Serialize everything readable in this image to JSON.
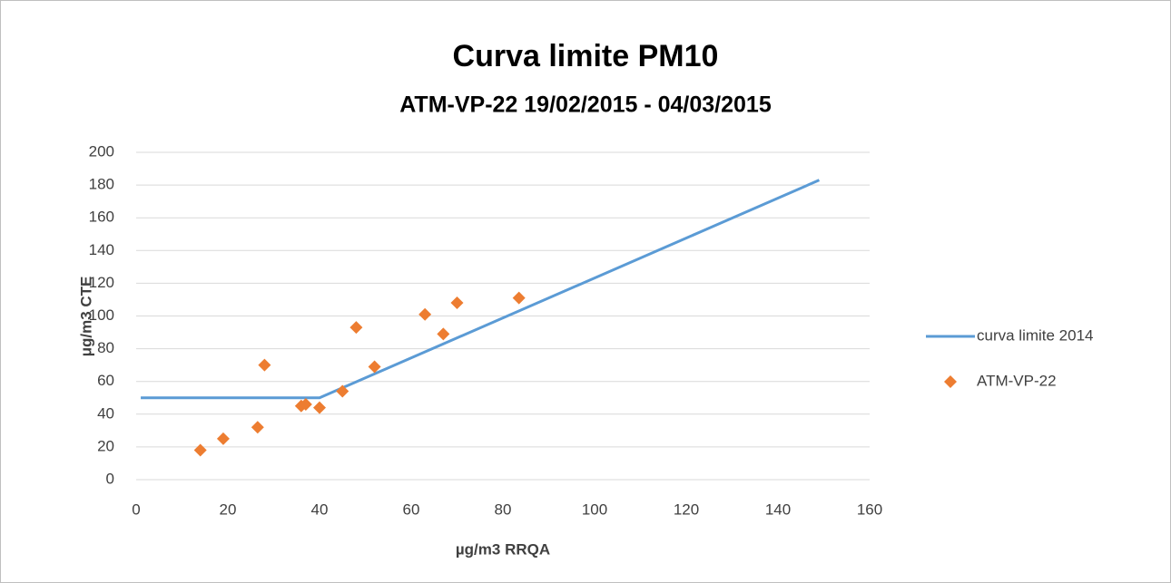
{
  "chart_data": {
    "type": "scatter",
    "title": "Curva limite PM10",
    "subtitle": "ATM-VP-22  19/02/2015 - 04/03/2015",
    "x_label": "µg/m3 RRQA",
    "y_label": "μg/m3 CTE",
    "xlim": [
      0,
      160
    ],
    "xticks": [
      0,
      20,
      40,
      60,
      80,
      100,
      120,
      140,
      160
    ],
    "ylim": [
      0,
      200
    ],
    "yticks": [
      0,
      20,
      40,
      60,
      80,
      100,
      120,
      140,
      160,
      180,
      200
    ],
    "grid": true,
    "legend": "right",
    "series": [
      {
        "name": "curva limite 2014",
        "color": "#5b9bd5",
        "type": "line",
        "x": [
          1,
          40,
          149
        ],
        "values": [
          50,
          50,
          183
        ]
      },
      {
        "name": "ATM-VP-22",
        "color": "#ed7d31",
        "type": "scatter",
        "x": [
          14,
          19,
          26.5,
          28,
          36,
          37,
          40,
          45,
          48,
          52,
          63,
          67,
          70,
          83.5
        ],
        "values": [
          18,
          25,
          32,
          70,
          45,
          46,
          44,
          54,
          93,
          69,
          101,
          89,
          108,
          111
        ]
      }
    ]
  }
}
